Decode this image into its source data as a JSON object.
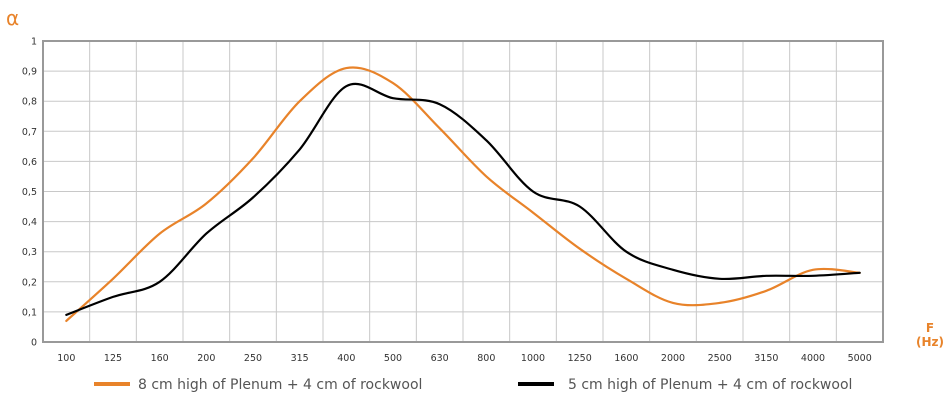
{
  "chart_data": {
    "type": "line",
    "ylabel": "α",
    "xlabel_line1": "F",
    "xlabel_line2": "(Hz)",
    "categories": [
      "100",
      "125",
      "160",
      "200",
      "250",
      "315",
      "400",
      "500",
      "630",
      "800",
      "1000",
      "1250",
      "1600",
      "2000",
      "2500",
      "3150",
      "4000",
      "5000"
    ],
    "y_ticks": [
      "0",
      "0,1",
      "0,2",
      "0,3",
      "0,4",
      "0,5",
      "0,6",
      "0,7",
      "0,8",
      "0,9",
      "1"
    ],
    "ylim": [
      0,
      1
    ],
    "grid": true,
    "legend_position": "bottom",
    "series": [
      {
        "name": "8 cm high of Plenum + 4 cm of rockwool",
        "color": "#E8832A",
        "values": [
          0.07,
          0.21,
          0.36,
          0.46,
          0.61,
          0.8,
          0.91,
          0.86,
          0.71,
          0.55,
          0.43,
          0.31,
          0.21,
          0.13,
          0.13,
          0.17,
          0.24,
          0.23
        ]
      },
      {
        "name": "5 cm high of Plenum + 4 cm of rockwool",
        "color": "#000000",
        "values": [
          0.09,
          0.15,
          0.2,
          0.36,
          0.48,
          0.64,
          0.85,
          0.81,
          0.79,
          0.67,
          0.5,
          0.45,
          0.3,
          0.24,
          0.21,
          0.22,
          0.22,
          0.23
        ]
      }
    ]
  },
  "colors": {
    "accent": "#E8832A",
    "grid": "#C8C8C8",
    "frame": "#999999"
  }
}
